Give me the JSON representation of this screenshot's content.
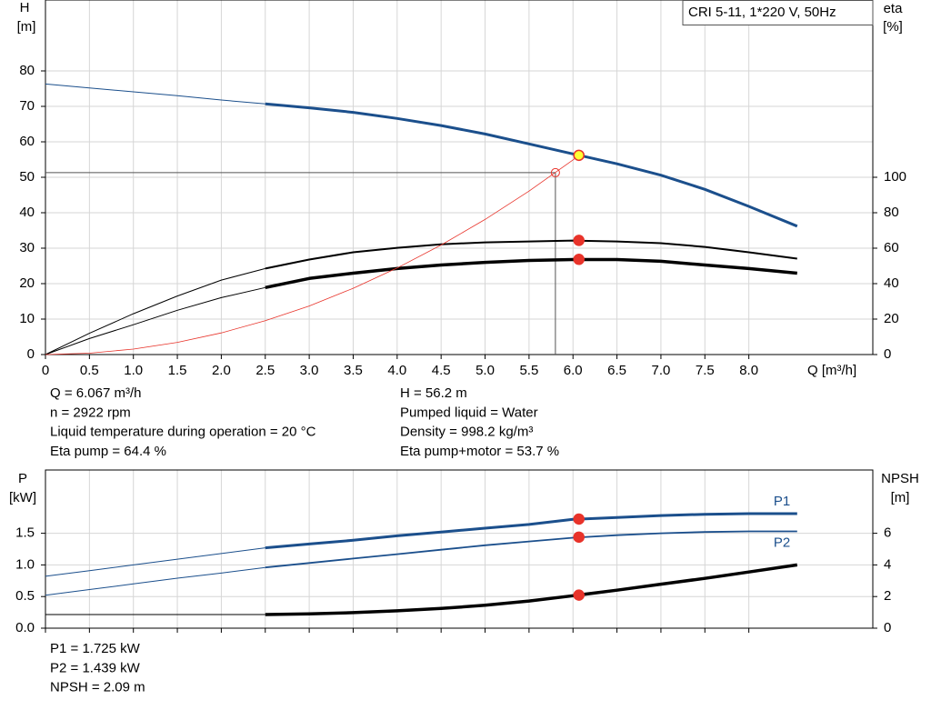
{
  "chart_data": [
    {
      "type": "line",
      "title": "CRI 5-11, 1*220 V, 50Hz",
      "x_label": "Q [m³/h]",
      "y_label": "H",
      "y_unit": "[m]",
      "y2_label": "eta",
      "y2_unit": "[%]",
      "xlim": [
        0,
        9.41
      ],
      "ylim": [
        0,
        100
      ],
      "y2lim": [
        0,
        200
      ],
      "grid": true,
      "xticks": [
        0,
        0.5,
        {
          "value": 1,
          "label": "1.0"
        },
        1.5,
        {
          "value": 2,
          "label": "2.0"
        },
        2.5,
        {
          "value": 3,
          "label": "3.0"
        },
        3.5,
        {
          "value": 4,
          "label": "4.0"
        },
        4.5,
        {
          "value": 5,
          "label": "5.0"
        },
        5.5,
        {
          "value": 6,
          "label": "6.0"
        },
        6.5,
        {
          "value": 7,
          "label": "7.0"
        },
        7.5,
        {
          "value": 8,
          "label": "8.0"
        }
      ],
      "yticks": [
        0,
        10,
        20,
        30,
        40,
        50,
        60,
        70,
        80
      ],
      "y2ticks": [
        0,
        20,
        40,
        60,
        80,
        100
      ],
      "series": [
        {
          "color": "#1b4f8c",
          "width": 1,
          "axis": "y",
          "x": [
            0,
            0.5,
            1,
            1.5,
            2,
            2.5
          ],
          "values": [
            76.3,
            75.2,
            74.1,
            73.0,
            71.8,
            70.7
          ]
        },
        {
          "color": "#1b4f8c",
          "width": 3,
          "axis": "y",
          "x": [
            2.5,
            3,
            3.5,
            4,
            4.5,
            5,
            5.5,
            6,
            6.5,
            7,
            7.5,
            8,
            8.55
          ],
          "values": [
            70.7,
            69.6,
            68.3,
            66.6,
            64.6,
            62.2,
            59.4,
            56.6,
            53.8,
            50.6,
            46.6,
            41.8,
            36.2
          ]
        },
        {
          "color": "#000000",
          "width": 1,
          "axis": "y2",
          "x": [
            0,
            0.5,
            1,
            1.5,
            2,
            2.5
          ],
          "values": [
            0,
            12,
            23,
            33,
            42,
            48.5
          ]
        },
        {
          "color": "#000000",
          "width": 2,
          "axis": "y2",
          "x": [
            2.5,
            3,
            3.5,
            4,
            4.5,
            5,
            5.5,
            6,
            6.5,
            7,
            7.5,
            8,
            8.55
          ],
          "values": [
            48.5,
            53.6,
            57.7,
            60.2,
            62.2,
            63.3,
            63.8,
            64.3,
            63.8,
            62.8,
            60.7,
            57.7,
            54.1
          ]
        },
        {
          "color": "#000000",
          "width": 1,
          "axis": "y2",
          "x": [
            0,
            0.5,
            1,
            1.5,
            2,
            2.5
          ],
          "values": [
            0,
            9,
            16.8,
            25,
            32.1,
            37.8
          ]
        },
        {
          "color": "#000000",
          "width": 3.5,
          "axis": "y2",
          "x": [
            2.5,
            3,
            3.5,
            4,
            4.5,
            5,
            5.5,
            6,
            6.5,
            7,
            7.5,
            8,
            8.55
          ],
          "values": [
            37.8,
            42.9,
            45.9,
            48.5,
            50.5,
            52,
            53.1,
            53.6,
            53.6,
            52.6,
            50.5,
            48.5,
            45.9
          ]
        },
        {
          "color": "#e8332a",
          "width": 0.8,
          "axis": "y",
          "x": [
            0,
            0.5,
            1,
            1.5,
            2,
            2.5,
            3,
            3.5,
            4,
            4.5,
            5,
            5.5,
            6,
            6.067
          ],
          "values": [
            0,
            0.38,
            1.53,
            3.43,
            6.1,
            9.53,
            13.7,
            18.7,
            24.4,
            30.9,
            38.1,
            46.1,
            54.9,
            56.2
          ]
        }
      ],
      "points": [
        {
          "x": 6.067,
          "y": 56.2,
          "axis": "y",
          "fill": "#ffff33",
          "stroke": "#e8332a"
        },
        {
          "x": 6.067,
          "y": 64.4,
          "axis": "y2",
          "fill": "#e8332a",
          "stroke": "#e8332a"
        },
        {
          "x": 6.067,
          "y": 53.7,
          "axis": "y2",
          "fill": "#e8332a",
          "stroke": "#e8332a"
        }
      ],
      "reference_point": {
        "x": 5.8,
        "y": 51.3,
        "color": "#e8332a"
      },
      "info_left": [
        "Q = 6.067 m³/h",
        "n = 2922 rpm",
        "Liquid temperature during operation = 20 °C",
        "Eta pump = 64.4 %"
      ],
      "info_right": [
        "H = 56.2 m",
        "Pumped liquid = Water",
        "Density = 998.2 kg/m³",
        "Eta pump+motor = 53.7 %"
      ]
    },
    {
      "type": "line",
      "y_label": "P",
      "y_unit": "[kW]",
      "y2_label": "NPSH",
      "y2_unit": "[m]",
      "xlim": [
        0,
        9.41
      ],
      "ylim": [
        0,
        2.5
      ],
      "y2lim": [
        0,
        10
      ],
      "grid": true,
      "yticks": [
        {
          "value": 0,
          "label": "0.0"
        },
        0.5,
        {
          "value": 1,
          "label": "1.0"
        },
        1.5
      ],
      "y2ticks": [
        0,
        2,
        4,
        6
      ],
      "series": [
        {
          "color": "#1b4f8c",
          "width": 1,
          "axis": "y",
          "x": [
            0,
            0.5,
            1,
            1.5,
            2,
            2.5
          ],
          "values": [
            0.82,
            0.91,
            1.0,
            1.09,
            1.18,
            1.27
          ]
        },
        {
          "name": "P1",
          "color": "#1b4f8c",
          "width": 3,
          "axis": "y",
          "x": [
            2.5,
            3,
            3.5,
            4,
            4.5,
            5,
            5.5,
            6,
            6.5,
            7,
            7.5,
            8,
            8.55
          ],
          "values": [
            1.27,
            1.33,
            1.39,
            1.46,
            1.52,
            1.58,
            1.64,
            1.72,
            1.75,
            1.78,
            1.8,
            1.81,
            1.81
          ]
        },
        {
          "color": "#1b4f8c",
          "width": 1,
          "axis": "y",
          "x": [
            0,
            0.5,
            1,
            1.5,
            2,
            2.5
          ],
          "values": [
            0.52,
            0.61,
            0.7,
            0.79,
            0.87,
            0.96
          ]
        },
        {
          "name": "P2",
          "color": "#1b4f8c",
          "width": 1.8,
          "axis": "y",
          "x": [
            2.5,
            3,
            3.5,
            4,
            4.5,
            5,
            5.5,
            6,
            6.5,
            7,
            7.5,
            8,
            8.55
          ],
          "values": [
            0.96,
            1.03,
            1.1,
            1.17,
            1.24,
            1.31,
            1.37,
            1.43,
            1.47,
            1.5,
            1.52,
            1.53,
            1.53
          ]
        },
        {
          "color": "#000000",
          "width": 1,
          "axis": "y2",
          "x": [
            0,
            2.5
          ],
          "values": [
            0.86,
            0.86
          ]
        },
        {
          "color": "#000000",
          "width": 3.5,
          "axis": "y2",
          "x": [
            2.5,
            3,
            3.5,
            4,
            4.5,
            5,
            5.5,
            6,
            6.5,
            7,
            7.5,
            8,
            8.55
          ],
          "values": [
            0.86,
            0.9,
            0.98,
            1.1,
            1.25,
            1.45,
            1.72,
            2.05,
            2.4,
            2.78,
            3.15,
            3.55,
            4.0
          ]
        }
      ],
      "points": [
        {
          "x": 6.067,
          "y": 1.725,
          "axis": "y",
          "fill": "#e8332a",
          "stroke": "#e8332a"
        },
        {
          "x": 6.067,
          "y": 1.439,
          "axis": "y",
          "fill": "#e8332a",
          "stroke": "#e8332a"
        },
        {
          "x": 6.067,
          "y": 2.09,
          "axis": "y2",
          "fill": "#e8332a",
          "stroke": "#e8332a"
        }
      ],
      "info_left": [
        "P1 = 1.725 kW",
        "P2 = 1.439 kW",
        "NPSH = 2.09 m"
      ]
    }
  ]
}
